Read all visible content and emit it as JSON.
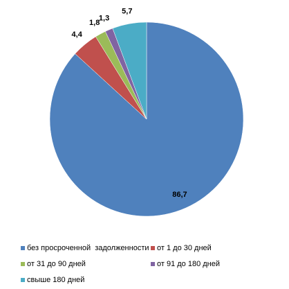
{
  "chart_data": {
    "type": "pie",
    "categories": [
      "без просроченной  задолженности",
      "от 1 до 30 дней",
      "от 31 до 90 дней",
      "от 91 до 180 дней",
      "свыше 180 дней"
    ],
    "values": [
      86.7,
      4.4,
      1.8,
      1.3,
      5.7
    ],
    "value_labels": [
      "86,7",
      "4,4",
      "1,8",
      "1,3",
      "5,7"
    ],
    "colors": [
      "#4f81bd",
      "#c0504d",
      "#9bbb59",
      "#8064a2",
      "#4bacc6"
    ],
    "legend": "bottom"
  }
}
